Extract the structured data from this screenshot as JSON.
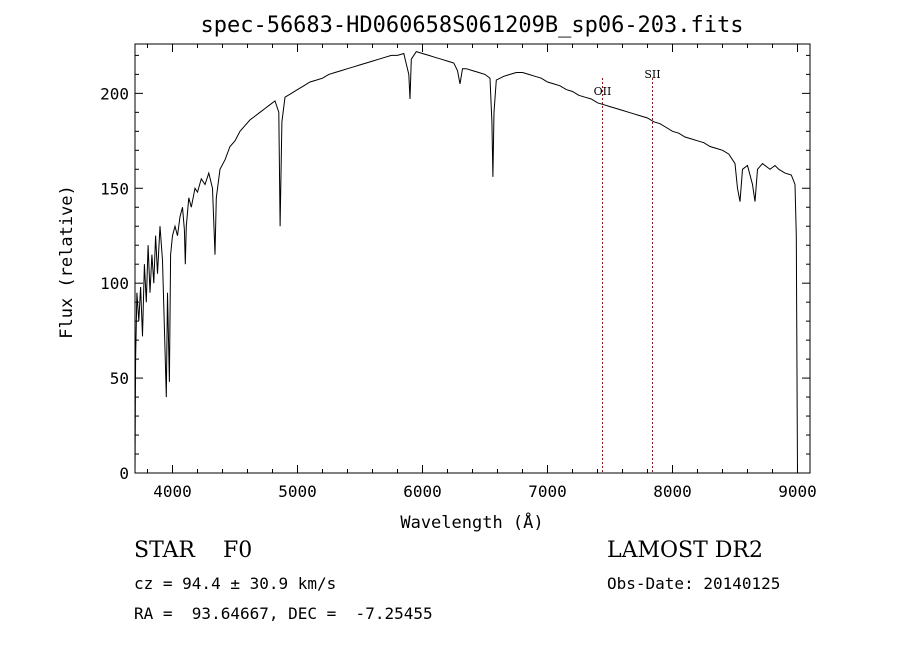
{
  "chart_data": {
    "type": "line",
    "title": "spec-56683-HD060658S061209B_sp06-203.fits",
    "xlabel": "Wavelength (Å)",
    "ylabel": "Flux (relative)",
    "xlim": [
      3700,
      9100
    ],
    "ylim": [
      0,
      226
    ],
    "xticks": [
      4000,
      5000,
      6000,
      7000,
      8000,
      9000
    ],
    "yticks": [
      0,
      50,
      100,
      150,
      200
    ],
    "grid": false,
    "line_color": "#000000",
    "series": [
      {
        "points": [
          [
            3700,
            0
          ],
          [
            3705,
            60
          ],
          [
            3715,
            95
          ],
          [
            3730,
            80
          ],
          [
            3745,
            98
          ],
          [
            3760,
            72
          ],
          [
            3775,
            110
          ],
          [
            3790,
            90
          ],
          [
            3805,
            120
          ],
          [
            3820,
            95
          ],
          [
            3835,
            115
          ],
          [
            3850,
            100
          ],
          [
            3865,
            125
          ],
          [
            3880,
            105
          ],
          [
            3900,
            130
          ],
          [
            3920,
            112
          ],
          [
            3940,
            65
          ],
          [
            3950,
            40
          ],
          [
            3960,
            95
          ],
          [
            3975,
            48
          ],
          [
            3985,
            115
          ],
          [
            4000,
            125
          ],
          [
            4020,
            130
          ],
          [
            4040,
            125
          ],
          [
            4060,
            135
          ],
          [
            4080,
            140
          ],
          [
            4095,
            128
          ],
          [
            4102,
            110
          ],
          [
            4110,
            130
          ],
          [
            4130,
            145
          ],
          [
            4150,
            140
          ],
          [
            4180,
            150
          ],
          [
            4200,
            148
          ],
          [
            4230,
            155
          ],
          [
            4260,
            152
          ],
          [
            4290,
            158
          ],
          [
            4320,
            150
          ],
          [
            4340,
            115
          ],
          [
            4350,
            145
          ],
          [
            4380,
            160
          ],
          [
            4420,
            165
          ],
          [
            4460,
            172
          ],
          [
            4500,
            175
          ],
          [
            4540,
            180
          ],
          [
            4580,
            183
          ],
          [
            4620,
            186
          ],
          [
            4660,
            188
          ],
          [
            4700,
            190
          ],
          [
            4740,
            192
          ],
          [
            4780,
            194
          ],
          [
            4820,
            196
          ],
          [
            4850,
            190
          ],
          [
            4861,
            130
          ],
          [
            4875,
            185
          ],
          [
            4900,
            198
          ],
          [
            4950,
            200
          ],
          [
            5000,
            202
          ],
          [
            5050,
            204
          ],
          [
            5100,
            206
          ],
          [
            5150,
            207
          ],
          [
            5200,
            208
          ],
          [
            5250,
            210
          ],
          [
            5300,
            211
          ],
          [
            5350,
            212
          ],
          [
            5400,
            213
          ],
          [
            5450,
            214
          ],
          [
            5500,
            215
          ],
          [
            5550,
            216
          ],
          [
            5600,
            217
          ],
          [
            5650,
            218
          ],
          [
            5700,
            219
          ],
          [
            5750,
            220
          ],
          [
            5800,
            220
          ],
          [
            5850,
            221
          ],
          [
            5890,
            210
          ],
          [
            5900,
            197
          ],
          [
            5910,
            218
          ],
          [
            5950,
            222
          ],
          [
            6000,
            221
          ],
          [
            6050,
            220
          ],
          [
            6100,
            219
          ],
          [
            6150,
            218
          ],
          [
            6200,
            217
          ],
          [
            6250,
            216
          ],
          [
            6280,
            212
          ],
          [
            6300,
            205
          ],
          [
            6320,
            213
          ],
          [
            6350,
            213
          ],
          [
            6400,
            212
          ],
          [
            6450,
            211
          ],
          [
            6500,
            210
          ],
          [
            6540,
            208
          ],
          [
            6555,
            185
          ],
          [
            6563,
            156
          ],
          [
            6572,
            190
          ],
          [
            6590,
            207
          ],
          [
            6650,
            209
          ],
          [
            6700,
            210
          ],
          [
            6750,
            211
          ],
          [
            6800,
            211
          ],
          [
            6850,
            210
          ],
          [
            6900,
            209
          ],
          [
            6950,
            208
          ],
          [
            7000,
            206
          ],
          [
            7050,
            205
          ],
          [
            7100,
            204
          ],
          [
            7150,
            202
          ],
          [
            7200,
            201
          ],
          [
            7250,
            199
          ],
          [
            7300,
            198
          ],
          [
            7350,
            197
          ],
          [
            7400,
            195
          ],
          [
            7450,
            194
          ],
          [
            7500,
            193
          ],
          [
            7550,
            192
          ],
          [
            7600,
            191
          ],
          [
            7650,
            190
          ],
          [
            7700,
            189
          ],
          [
            7750,
            188
          ],
          [
            7800,
            187
          ],
          [
            7850,
            185
          ],
          [
            7900,
            184
          ],
          [
            7950,
            182
          ],
          [
            8000,
            180
          ],
          [
            8050,
            179
          ],
          [
            8100,
            177
          ],
          [
            8150,
            176
          ],
          [
            8200,
            175
          ],
          [
            8250,
            174
          ],
          [
            8300,
            172
          ],
          [
            8350,
            171
          ],
          [
            8400,
            170
          ],
          [
            8450,
            168
          ],
          [
            8500,
            163
          ],
          [
            8520,
            150
          ],
          [
            8540,
            143
          ],
          [
            8560,
            160
          ],
          [
            8600,
            162
          ],
          [
            8640,
            152
          ],
          [
            8660,
            143
          ],
          [
            8680,
            160
          ],
          [
            8720,
            163
          ],
          [
            8780,
            160
          ],
          [
            8820,
            162
          ],
          [
            8850,
            160
          ],
          [
            8900,
            158
          ],
          [
            8950,
            157
          ],
          [
            8980,
            152
          ],
          [
            8990,
            125
          ],
          [
            8998,
            20
          ],
          [
            9000,
            0
          ]
        ]
      }
    ],
    "annotations": [
      {
        "label": "OII",
        "x": 7440,
        "color": "#8b1a1a"
      },
      {
        "label": "SII",
        "x": 7840,
        "color": "#8b1a1a"
      }
    ]
  },
  "info": {
    "class_label": "STAR    F0",
    "survey_label": "LAMOST DR2",
    "cz_text": "cz = 94.4 ± 30.9 km/s",
    "obs_date_text": "Obs-Date: 20140125",
    "radec_text": "RA =  93.64667, DEC =  -7.25455"
  }
}
